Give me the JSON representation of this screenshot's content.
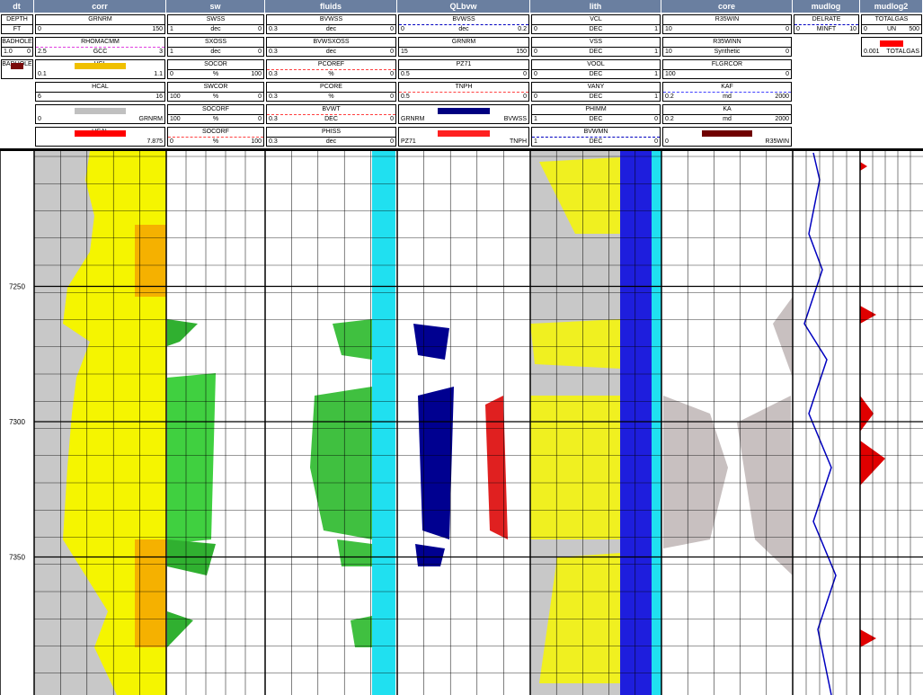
{
  "tracks": [
    {
      "title": "dt",
      "curves": [
        {
          "name": "DEPTH",
          "unit": "FT"
        },
        {
          "name": "BADHOLE",
          "left": "1.0",
          "right": "0"
        },
        {
          "name": "BADHOLE",
          "swatch": "#7a0a0a"
        }
      ]
    },
    {
      "title": "corr",
      "curves": [
        {
          "name": "GRNRM",
          "left": "0",
          "right": "150"
        },
        {
          "name": "RHOMACMM",
          "unit": "GCC",
          "left": "2.5",
          "right": "3",
          "color": "#e040e0"
        },
        {
          "name": "VCL",
          "left": "0.1",
          "right": "1.1",
          "swatch": "#f0c000"
        },
        {
          "name": "HCAL",
          "left": "6",
          "right": "16"
        },
        {
          "left": "0",
          "right": "GRNRM",
          "swatch": "#c0c0c0"
        },
        {
          "name": "HCAL",
          "right": "7.875",
          "swatch": "#ff0000"
        }
      ]
    },
    {
      "title": "sw",
      "curves": [
        {
          "name": "SWSS",
          "left": "1",
          "unit": "dec",
          "right": "0"
        },
        {
          "name": "SXOSS",
          "left": "1",
          "unit": "dec",
          "right": "0"
        },
        {
          "name": "SOCOR",
          "left": "0",
          "unit": "%",
          "right": "100"
        },
        {
          "name": "SWCOR",
          "left": "100",
          "unit": "%",
          "right": "0"
        },
        {
          "name": "SOCORF",
          "left": "100",
          "unit": "%",
          "right": "0"
        },
        {
          "name": "SOCORF",
          "left": "0",
          "unit": "%",
          "right": "100",
          "color": "#ff4040"
        }
      ]
    },
    {
      "title": "fluids",
      "curves": [
        {
          "name": "BVWSS",
          "left": "0.3",
          "unit": "dec",
          "right": "0"
        },
        {
          "name": "BVWSXOSS",
          "left": "0.3",
          "unit": "dec",
          "right": "0"
        },
        {
          "name": "PCOREF",
          "left": "0.3",
          "unit": "%",
          "right": "0",
          "color": "#ff4040"
        },
        {
          "name": "PCORE",
          "left": "0.3",
          "unit": "%",
          "right": "0"
        },
        {
          "name": "BVWT",
          "left": "0.3",
          "unit": "DEC",
          "right": "0",
          "color": "#ff4040"
        },
        {
          "name": "PHISS",
          "left": "0.3",
          "unit": "dec",
          "right": "0"
        }
      ]
    },
    {
      "title": "QLbvw",
      "curves": [
        {
          "name": "BVWSS",
          "left": "0",
          "unit": "dec",
          "right": "0.2",
          "color": "#0000c0"
        },
        {
          "name": "GRNRM",
          "left": "15",
          "right": "150"
        },
        {
          "name": "PZ71",
          "left": "0.5",
          "right": "0"
        },
        {
          "name": "TNPH",
          "left": "0.5",
          "right": "0",
          "color": "#ff4040"
        },
        {
          "left": "GRNRM",
          "right": "BVWSS",
          "swatch": "#000080"
        },
        {
          "left": "PZ71",
          "right": "TNPH",
          "swatch": "#ff2020"
        }
      ]
    },
    {
      "title": "lith",
      "curves": [
        {
          "name": "VCL",
          "left": "0",
          "unit": "DEC",
          "right": "1"
        },
        {
          "name": "VSS",
          "left": "0",
          "unit": "DEC",
          "right": "1"
        },
        {
          "name": "VOOL",
          "left": "0",
          "unit": "DEC",
          "right": "1"
        },
        {
          "name": "VANY",
          "left": "0",
          "unit": "DEC",
          "right": "1"
        },
        {
          "name": "PHIMM",
          "left": "1",
          "unit": "DEC",
          "right": "0"
        },
        {
          "name": "BVWMN",
          "left": "1",
          "unit": "DEC",
          "right": "0",
          "color": "#0000c0"
        }
      ]
    },
    {
      "title": "core",
      "curves": [
        {
          "name": "R35WIN",
          "left": "10",
          "right": "0"
        },
        {
          "name": "R35WINN",
          "unit": "Synthetic",
          "left": "10",
          "right": "0"
        },
        {
          "name": "FLGRCOR",
          "left": "100",
          "right": "0"
        },
        {
          "name": "KAF",
          "unit": "md",
          "left": "0.2",
          "right": "2000",
          "color": "#4040ff"
        },
        {
          "name": "KA",
          "unit": "md",
          "left": "0.2",
          "right": "2000"
        },
        {
          "left": "0",
          "right": "R35WIN",
          "swatch": "#700000"
        }
      ]
    },
    {
      "title": "mudlog",
      "curves": [
        {
          "name": "DELRATE",
          "left": "0",
          "unit": "MINFT",
          "right": "10",
          "color": "#0000c0"
        }
      ]
    },
    {
      "title": "mudlog2",
      "curves": [
        {
          "name": "TOTALGAS",
          "left": "0",
          "unit": "UN",
          "right": "500"
        },
        {
          "left": "0.001",
          "right": "TOTALGAS",
          "swatch": "#ff0000"
        }
      ]
    }
  ],
  "depth": {
    "range": [
      7200,
      7401
    ],
    "ticks": [
      7250,
      7300,
      7350
    ]
  }
}
